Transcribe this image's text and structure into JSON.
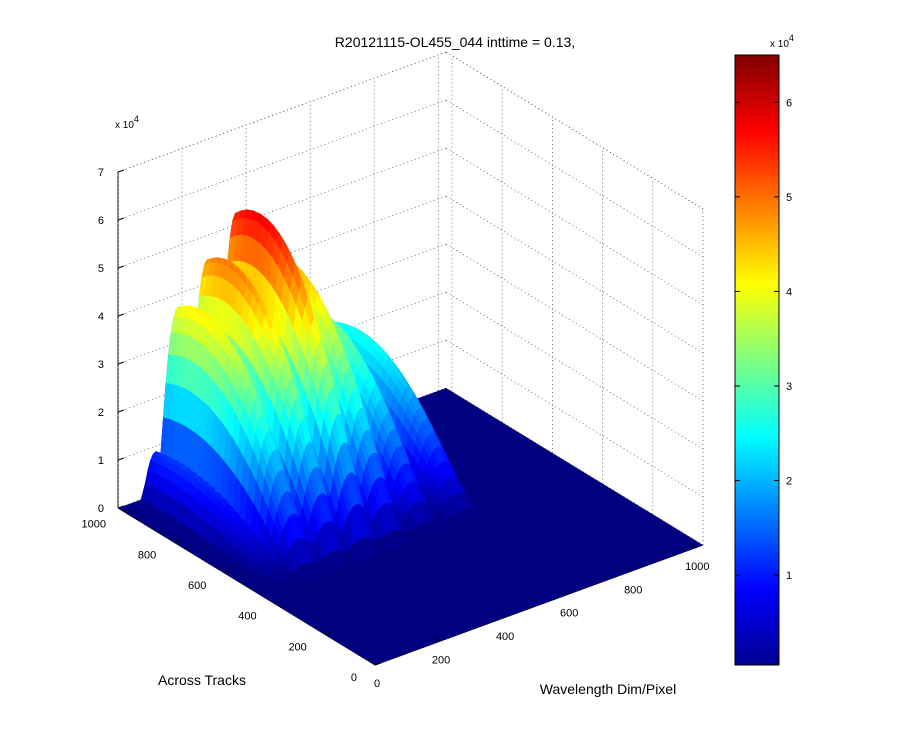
{
  "chart_data": {
    "type": "surface",
    "title": "R20121115-OL455_044 inttime = 0.13,",
    "xlabel": "Wavelength Dim/Pixel",
    "ylabel": "Across Tracks",
    "z_exponent_label": "x 10",
    "z_exponent": "4",
    "x_ticks": [
      "0",
      "200",
      "400",
      "600",
      "800",
      "1000"
    ],
    "y_ticks": [
      "0",
      "200",
      "400",
      "600",
      "800",
      "1000"
    ],
    "z_ticks": [
      "0",
      "1",
      "2",
      "3",
      "4",
      "5",
      "6",
      "7"
    ],
    "xlim": [
      0,
      1024
    ],
    "ylim": [
      0,
      1024
    ],
    "zlim": [
      0,
      7
    ],
    "colormap": "jet",
    "colorbar": {
      "exponent_label": "x 10",
      "exponent": "4",
      "ticks": [
        "1",
        "2",
        "3",
        "4",
        "5",
        "6"
      ],
      "range": [
        0.05,
        6.5
      ]
    },
    "peaks_x10e4": [
      {
        "x": 80,
        "y": 950,
        "z": 1.2
      },
      {
        "x": 150,
        "y": 930,
        "z": 4.2
      },
      {
        "x": 240,
        "y": 900,
        "z": 5.0
      },
      {
        "x": 330,
        "y": 880,
        "z": 5.8
      },
      {
        "x": 420,
        "y": 850,
        "z": 4.6
      },
      {
        "x": 520,
        "y": 820,
        "z": 3.3
      },
      {
        "x": 640,
        "y": 800,
        "z": 2.6
      }
    ],
    "grid": true
  }
}
